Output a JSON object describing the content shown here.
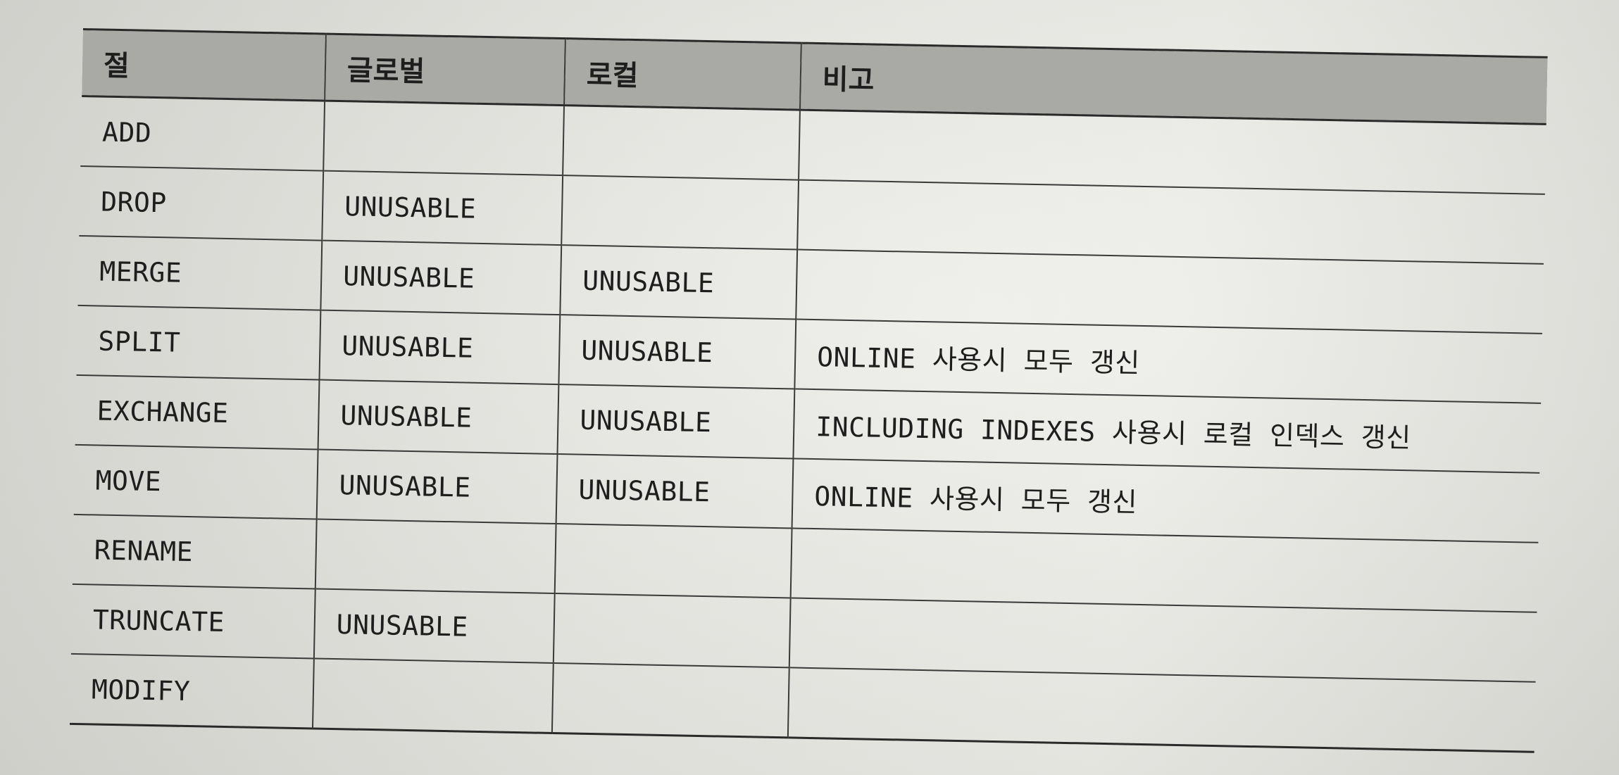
{
  "table": {
    "headers": [
      "절",
      "글로벌",
      "로컬",
      "비고"
    ],
    "rows": [
      {
        "clause": "ADD",
        "global": "",
        "local": "",
        "note": ""
      },
      {
        "clause": "DROP",
        "global": "UNUSABLE",
        "local": "",
        "note": ""
      },
      {
        "clause": "MERGE",
        "global": "UNUSABLE",
        "local": "UNUSABLE",
        "note": ""
      },
      {
        "clause": "SPLIT",
        "global": "UNUSABLE",
        "local": "UNUSABLE",
        "note": "ONLINE 사용시 모두 갱신"
      },
      {
        "clause": "EXCHANGE",
        "global": "UNUSABLE",
        "local": "UNUSABLE",
        "note": "INCLUDING INDEXES 사용시 로컬 인덱스 갱신"
      },
      {
        "clause": "MOVE",
        "global": "UNUSABLE",
        "local": "UNUSABLE",
        "note": "ONLINE 사용시 모두 갱신"
      },
      {
        "clause": "RENAME",
        "global": "",
        "local": "",
        "note": ""
      },
      {
        "clause": "TRUNCATE",
        "global": "UNUSABLE",
        "local": "",
        "note": ""
      },
      {
        "clause": "MODIFY",
        "global": "",
        "local": "",
        "note": ""
      }
    ]
  }
}
